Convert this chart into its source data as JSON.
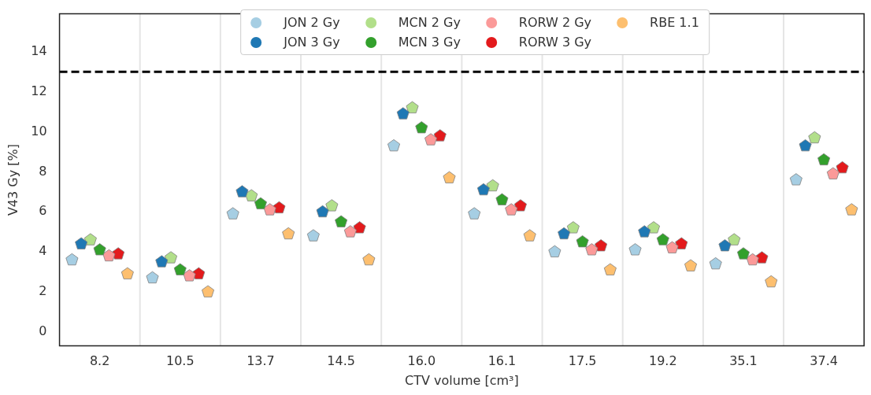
{
  "chart_data": {
    "type": "scatter",
    "xlabel": "CTV volume [cm³]",
    "ylabel": "V43 Gy [%]",
    "categories": [
      "8.2",
      "10.5",
      "13.7",
      "14.5",
      "16.0",
      "16.1",
      "17.5",
      "19.2",
      "35.1",
      "37.4"
    ],
    "ylim": [
      -0.7,
      15.9
    ],
    "yticks": [
      0,
      2,
      4,
      6,
      8,
      10,
      12,
      14
    ],
    "grid": "x",
    "legend": "top",
    "ref_lines": [
      {
        "axis": "y",
        "value": 13,
        "color": "#000000",
        "line_style": "dashed"
      }
    ],
    "series": [
      {
        "name": "JON 2 Gy",
        "color": "#a6cee3",
        "values": [
          3.6,
          2.7,
          5.9,
          4.8,
          9.3,
          5.9,
          4.0,
          4.1,
          3.4,
          7.6
        ]
      },
      {
        "name": "JON 3 Gy",
        "color": "#1f78b4",
        "values": [
          4.4,
          3.5,
          7.0,
          6.0,
          10.9,
          7.1,
          4.9,
          5.0,
          4.3,
          9.3
        ]
      },
      {
        "name": "MCN 2 Gy",
        "color": "#b2df8a",
        "values": [
          4.6,
          3.7,
          6.8,
          6.3,
          11.2,
          7.3,
          5.2,
          5.2,
          4.6,
          9.7
        ]
      },
      {
        "name": "MCN 3 Gy",
        "color": "#33a02c",
        "values": [
          4.1,
          3.1,
          6.4,
          5.5,
          10.2,
          6.6,
          4.5,
          4.6,
          3.9,
          8.6
        ]
      },
      {
        "name": "RORW 2 Gy",
        "color": "#fb9a99",
        "values": [
          3.8,
          2.8,
          6.1,
          5.0,
          9.6,
          6.1,
          4.1,
          4.2,
          3.6,
          7.9
        ]
      },
      {
        "name": "RORW 3 Gy",
        "color": "#e31a1c",
        "values": [
          3.9,
          2.9,
          6.2,
          5.2,
          9.8,
          6.3,
          4.3,
          4.4,
          3.7,
          8.2
        ]
      },
      {
        "name": "RBE 1.1",
        "color": "#fdbf6f",
        "values": [
          2.9,
          2.0,
          4.9,
          3.6,
          7.7,
          4.8,
          3.1,
          3.3,
          2.5,
          6.1
        ]
      }
    ]
  }
}
